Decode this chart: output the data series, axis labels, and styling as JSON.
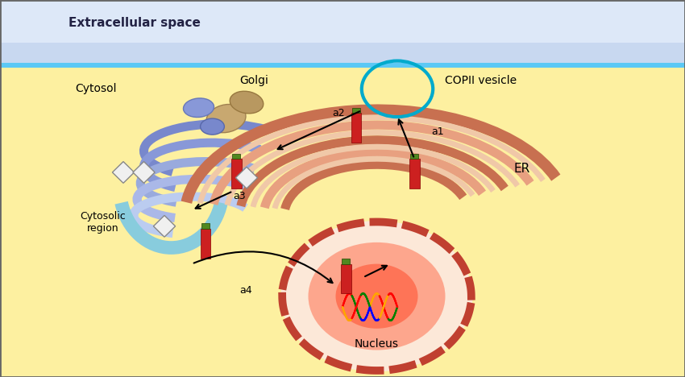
{
  "bg_outer": "#4a6a7a",
  "bg_extracellular": "#b8cce4",
  "bg_cytosol": "#fdf0a0",
  "border_color": "#5bc8f5",
  "extracellular_label": "Extracellular space",
  "cytosol_label": "Cytosol",
  "golgi_label": "Golgi",
  "copii_label": "COPII vesicle",
  "er_label": "ER",
  "nucleus_label": "Nucleus",
  "cytosolic_label": "Cytosolic\nregion",
  "arrow_labels": [
    "a1",
    "a2",
    "a3",
    "a4"
  ],
  "golgi_color": "#7080c0",
  "golgi_light": "#9ab0e0",
  "golgi_teal": "#88ccdd",
  "er_outer": "#c87050",
  "er_inner": "#e8b090",
  "er_fill": "#f0c8a8",
  "nucleus_border": "#c04030",
  "nucleus_fill_outer": "#f0d0c0",
  "nucleus_fill_inner": "#ff6040",
  "red_rect": "#cc2020",
  "green_small": "#508820",
  "diamond_color": "#e8e8e8",
  "copii_circle": "#00aacc",
  "title_fontsize": 11,
  "label_fontsize": 10
}
